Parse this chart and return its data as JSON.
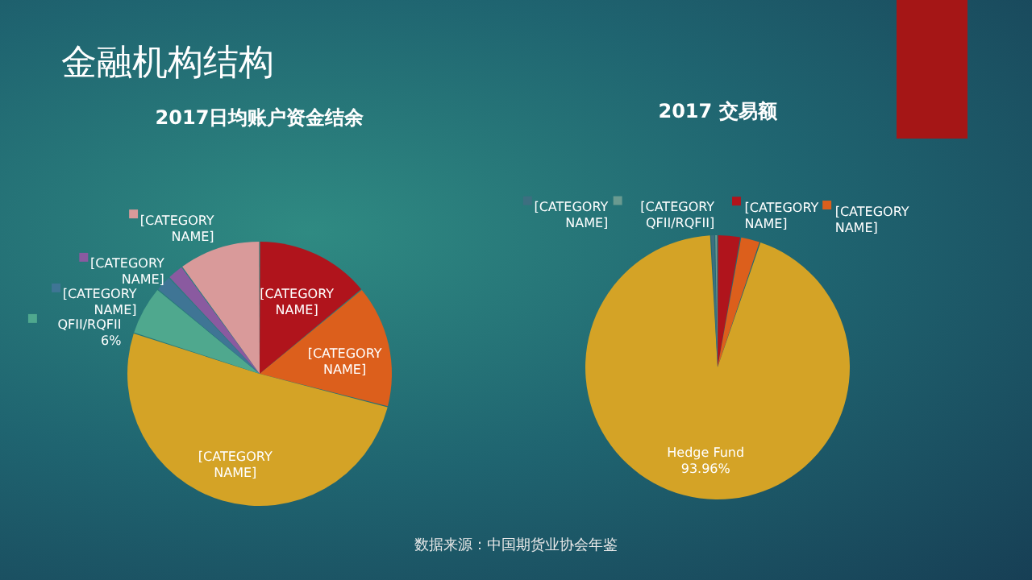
{
  "chart_data": [
    {
      "type": "pie",
      "title": "2017日均账户资金结余",
      "annotations": [
        "金融机构结构"
      ],
      "categories": [
        "[CATEGORY NAME]",
        "[CATEGORY NAME]",
        "[CATEGORY NAME]",
        "QFII/RQFII",
        "[CATEGORY NAME]",
        "[CATEGORY NAME]",
        "[CATEGORY NAME]"
      ],
      "values": [
        14,
        15,
        51,
        6,
        2,
        2,
        10
      ],
      "value_labels": [
        null,
        null,
        null,
        "6%",
        null,
        null,
        null
      ],
      "colors": [
        "#b0141c",
        "#dc5f1c",
        "#d4a326",
        "#4fa88e",
        "#3f7595",
        "#8a5aa0",
        "#d99a9a"
      ],
      "legend": "left"
    },
    {
      "type": "pie",
      "title": "2017 交易额",
      "annotations": [
        "数据来源：中国期货业协会年鉴"
      ],
      "categories": [
        "[CATEGORY NAME]",
        "[CATEGORY NAME]",
        "Hedge Fund",
        "[CATEGORY NAME]",
        "[CATEGORY QFII/RQFII]"
      ],
      "values": [
        2.8,
        2.4,
        93.96,
        0.5,
        0.34
      ],
      "value_labels": [
        null,
        null,
        "93.96%",
        null,
        null
      ],
      "colors": [
        "#b0141c",
        "#dc5f1c",
        "#d4a326",
        "#3d6f80",
        "#6a9a90"
      ],
      "legend": "top"
    }
  ]
}
